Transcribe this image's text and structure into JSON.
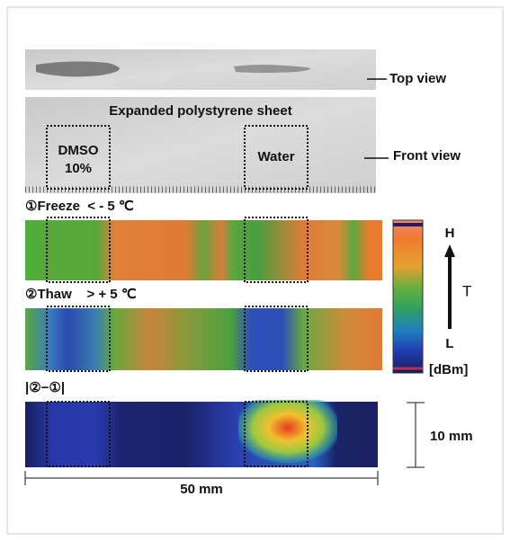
{
  "sheet_label": "Expanded polystyrene sheet",
  "top_view_label": "Top view",
  "front_view_label": "Front view",
  "dmso_label": [
    "DMSO",
    "10%"
  ],
  "water_label": "Water",
  "panels": [
    {
      "label": "①Freeze  < - 5 ℃"
    },
    {
      "label": "②Thaw    > + 5 ℃"
    },
    {
      "label": "|②−①|"
    }
  ],
  "colorbar": {
    "high": "H",
    "axis": "T",
    "low": "L",
    "unit": "[dBm]"
  },
  "scale": {
    "height": "10 mm",
    "width": "50 mm"
  }
}
